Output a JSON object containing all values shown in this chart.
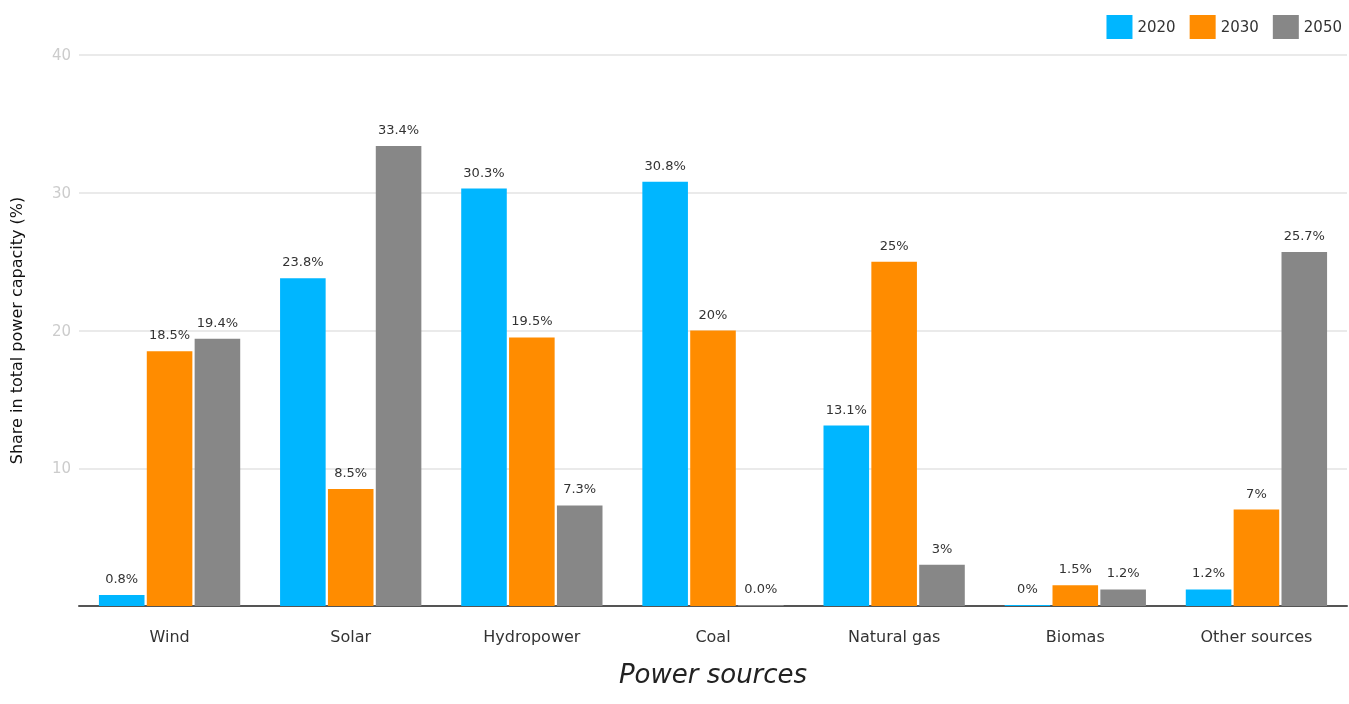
{
  "chart_data": {
    "type": "bar",
    "xlabel": "Power sources",
    "ylabel": "Share in total power capacity (%)",
    "categories": [
      "Wind",
      "Solar",
      "Hydropower",
      "Coal",
      "Natural gas",
      "Biomas",
      "Other sources"
    ],
    "series": [
      {
        "name": "2020",
        "color": "#00b6ff",
        "values": [
          0.8,
          23.8,
          30.3,
          30.8,
          13.1,
          0,
          1.2
        ],
        "value_labels": [
          "0.8%",
          "23.8%",
          "30.3%",
          "30.8%",
          "13.1%",
          "0%",
          "1.2%"
        ]
      },
      {
        "name": "2030",
        "color": "#ff8c00",
        "values": [
          18.5,
          8.5,
          19.5,
          20,
          25,
          1.5,
          7
        ],
        "value_labels": [
          "18.5%",
          "8.5%",
          "19.5%",
          "20%",
          "25%",
          "1.5%",
          "7%"
        ]
      },
      {
        "name": "2050",
        "color": "#878787",
        "values": [
          19.4,
          33.4,
          7.3,
          0.0,
          3,
          1.2,
          25.7
        ],
        "value_labels": [
          "19.4%",
          "33.4%",
          "7.3%",
          "0.0%",
          "3%",
          "1.2%",
          "25.7%"
        ]
      }
    ],
    "ylim": [
      0,
      40
    ],
    "yticks": [
      10,
      20,
      30,
      40
    ],
    "grid": "y",
    "legend": "top right"
  }
}
